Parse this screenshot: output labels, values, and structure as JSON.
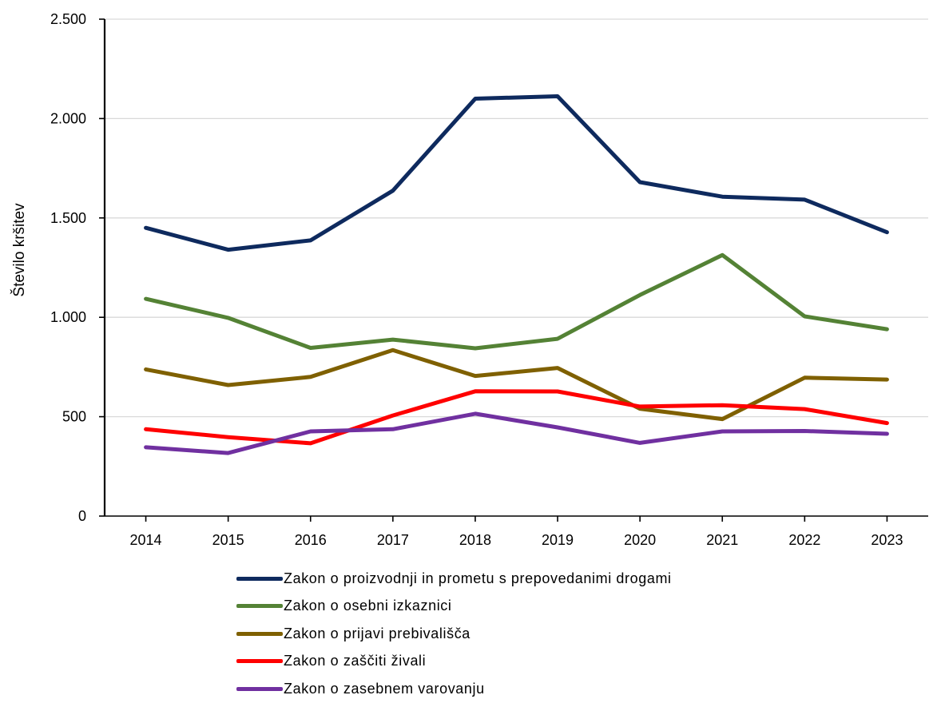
{
  "chart_data": {
    "type": "line",
    "ylabel": "Število kršitev",
    "xlabel": "",
    "categories": [
      "2014",
      "2015",
      "2016",
      "2017",
      "2018",
      "2019",
      "2020",
      "2021",
      "2022",
      "2023"
    ],
    "ylim": [
      0,
      2500
    ],
    "yticks": [
      0,
      500,
      1000,
      1500,
      2000,
      2500
    ],
    "ytick_labels": [
      "0",
      "500",
      "1.000",
      "1.500",
      "2.000",
      "2.500"
    ],
    "grid": "horizontal",
    "legend_position": "bottom",
    "series": [
      {
        "name": "Zakon o proizvodnji in prometu s prepovedanimi drogami",
        "color": "#0e2a5e",
        "values": [
          1450,
          1340,
          1387,
          1637,
          2100,
          2112,
          1680,
          1607,
          1592,
          1428
        ]
      },
      {
        "name": "Zakon o osebni izkaznici",
        "color": "#548235",
        "values": [
          1093,
          997,
          846,
          888,
          844,
          892,
          1112,
          1313,
          1005,
          940
        ]
      },
      {
        "name": "Zakon o prijavi prebivališča",
        "color": "#7f6000",
        "values": [
          738,
          659,
          700,
          835,
          705,
          745,
          540,
          488,
          696,
          687
        ]
      },
      {
        "name": "Zakon o zaščiti živali",
        "color": "#ff0000",
        "values": [
          437,
          397,
          366,
          506,
          628,
          627,
          551,
          558,
          538,
          468
        ]
      },
      {
        "name": "Zakon o zasebnem varovanju",
        "color": "#7030a0",
        "values": [
          346,
          317,
          426,
          437,
          515,
          446,
          368,
          426,
          428,
          414
        ]
      }
    ]
  }
}
